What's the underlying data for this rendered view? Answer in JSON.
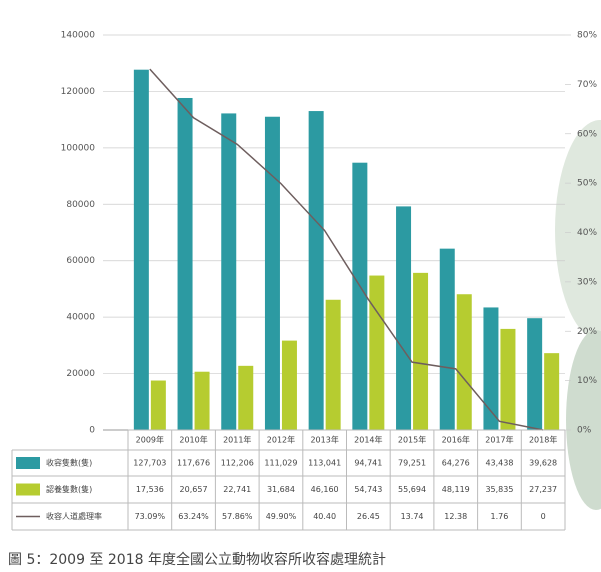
{
  "chart_data": {
    "type": "bar",
    "categories": [
      "2009年",
      "2010年",
      "2011年",
      "2012年",
      "2013年",
      "2014年",
      "2015年",
      "2016年",
      "2017年",
      "2018年"
    ],
    "series": [
      {
        "name": "收容隻數(隻)",
        "color": "#2c9aa2",
        "type": "bar",
        "values": [
          127703,
          117676,
          112206,
          111029,
          113041,
          94741,
          79251,
          64276,
          43438,
          39628
        ],
        "value_labels": [
          "127,703",
          "117,676",
          "112,206",
          "111,029",
          "113,041",
          "94,741",
          "79,251",
          "64,276",
          "43,438",
          "39,628"
        ]
      },
      {
        "name": "認養隻數(隻)",
        "color": "#b6cc30",
        "type": "bar",
        "values": [
          17536,
          20657,
          22741,
          31684,
          46160,
          54743,
          55694,
          48119,
          35835,
          27237
        ],
        "value_labels": [
          "17,536",
          "20,657",
          "22,741",
          "31,684",
          "46,160",
          "54,743",
          "55,694",
          "48,119",
          "35,835",
          "27,237"
        ]
      },
      {
        "name": "收容人道處理率",
        "color": "#6e5e5e",
        "type": "line",
        "axis": "y2",
        "values": [
          73.09,
          63.24,
          57.86,
          49.9,
          40.4,
          26.45,
          13.74,
          12.38,
          1.76,
          0
        ],
        "value_labels": [
          "73.09%",
          "63.24%",
          "57.86%",
          "49.90%",
          "40.40",
          "26.45",
          "13.74",
          "12.38",
          "1.76",
          "0"
        ]
      }
    ],
    "ylim": [
      0,
      140000
    ],
    "yticks": [
      0,
      20000,
      40000,
      60000,
      80000,
      100000,
      120000,
      140000
    ],
    "y2lim": [
      0,
      80
    ],
    "y2ticks": [
      {
        "value": 0,
        "label": "0%"
      },
      {
        "value": 10,
        "label": "10%"
      },
      {
        "value": 20,
        "label": "20%"
      },
      {
        "value": 30,
        "label": "30%"
      },
      {
        "value": 40,
        "label": "40%"
      },
      {
        "value": 50,
        "label": "50%"
      },
      {
        "value": 60,
        "label": "60%"
      },
      {
        "value": 70,
        "label": "70%"
      },
      {
        "value": 80,
        "label": "80%"
      }
    ],
    "grid": true,
    "caption": "圖 5：2009 至 2018 年度全國公立動物收容所收容處理統計"
  }
}
